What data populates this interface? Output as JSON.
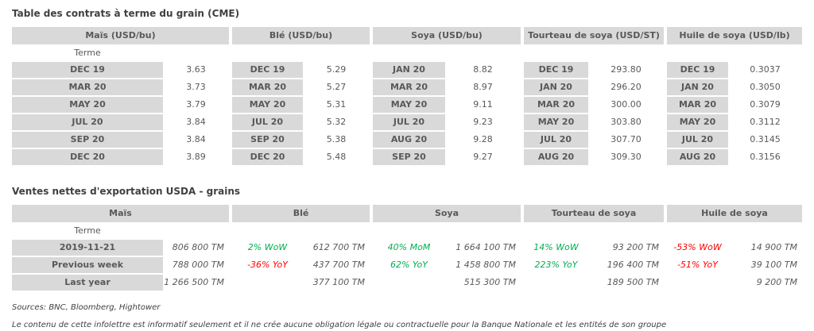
{
  "colors": {
    "header_bg": "#d9d9d9",
    "cell_text": "#595959",
    "title_text": "#404040",
    "positive": "#00b050",
    "negative": "#ff0000"
  },
  "futures_table": {
    "title": "Table des contrats à terme du grain (CME)",
    "terme_label": "Terme",
    "headers": [
      "Maïs (USD/bu)",
      "Blé (USD/bu)",
      "Soya (USD/bu)",
      "Tourteau de soya (USD/ST)",
      "Huile de soya (USD/lb)"
    ],
    "rows": [
      [
        {
          "term": "DEC 19",
          "value": "3.63"
        },
        {
          "term": "DEC 19",
          "value": "5.29"
        },
        {
          "term": "JAN 20",
          "value": "8.82"
        },
        {
          "term": "DEC 19",
          "value": "293.80"
        },
        {
          "term": "DEC 19",
          "value": "0.3037"
        }
      ],
      [
        {
          "term": "MAR 20",
          "value": "3.73"
        },
        {
          "term": "MAR 20",
          "value": "5.27"
        },
        {
          "term": "MAR 20",
          "value": "8.97"
        },
        {
          "term": "JAN 20",
          "value": "296.20"
        },
        {
          "term": "JAN 20",
          "value": "0.3050"
        }
      ],
      [
        {
          "term": "MAY 20",
          "value": "3.79"
        },
        {
          "term": "MAY 20",
          "value": "5.31"
        },
        {
          "term": "MAY 20",
          "value": "9.11"
        },
        {
          "term": "MAR 20",
          "value": "300.00"
        },
        {
          "term": "MAR 20",
          "value": "0.3079"
        }
      ],
      [
        {
          "term": "JUL 20",
          "value": "3.84"
        },
        {
          "term": "JUL 20",
          "value": "5.32"
        },
        {
          "term": "JUL 20",
          "value": "9.23"
        },
        {
          "term": "MAY 20",
          "value": "303.80"
        },
        {
          "term": "MAY 20",
          "value": "0.3112"
        }
      ],
      [
        {
          "term": "SEP 20",
          "value": "3.84"
        },
        {
          "term": "SEP 20",
          "value": "5.38"
        },
        {
          "term": "AUG 20",
          "value": "9.28"
        },
        {
          "term": "JUL 20",
          "value": "307.70"
        },
        {
          "term": "JUL 20",
          "value": "0.3145"
        }
      ],
      [
        {
          "term": "DEC 20",
          "value": "3.89"
        },
        {
          "term": "DEC 20",
          "value": "5.48"
        },
        {
          "term": "SEP 20",
          "value": "9.27"
        },
        {
          "term": "AUG 20",
          "value": "309.30"
        },
        {
          "term": "AUG 20",
          "value": "0.3156"
        }
      ]
    ]
  },
  "exports_table": {
    "title": "Ventes nettes d'exportation USDA - grains",
    "terme_label": "Terme",
    "headers": [
      "Maïs",
      "Blé",
      "Soya",
      "Tourteau de soya",
      "Huile de soya"
    ],
    "rows": [
      {
        "label": "2019-11-21",
        "mais_value": "806 800 TM",
        "sections": [
          {
            "pct": "2% WoW",
            "dir": "up",
            "value": "612 700 TM"
          },
          {
            "pct": "40% MoM",
            "dir": "up",
            "value": "1 664 100 TM"
          },
          {
            "pct": "14% WoW",
            "dir": "up",
            "value": "93 200 TM"
          },
          {
            "pct": "-53% WoW",
            "dir": "down",
            "value": "14 900 TM"
          }
        ]
      },
      {
        "label": "Previous week",
        "mais_value": "788 000 TM",
        "sections": [
          {
            "pct": "-36% YoY",
            "dir": "down",
            "value": "437 700 TM"
          },
          {
            "pct": "62% YoY",
            "dir": "up",
            "value": "1 458 800 TM"
          },
          {
            "pct": "223% YoY",
            "dir": "up",
            "value": "196 400 TM"
          },
          {
            "pct": "-51% YoY",
            "dir": "down",
            "value": "39 100 TM"
          }
        ]
      },
      {
        "label": "Last year",
        "mais_value": "1 266 500 TM",
        "sections": [
          {
            "pct": "",
            "dir": "",
            "value": "377 100 TM"
          },
          {
            "pct": "",
            "dir": "",
            "value": "515 300 TM"
          },
          {
            "pct": "",
            "dir": "",
            "value": "189 500 TM"
          },
          {
            "pct": "",
            "dir": "",
            "value": "9 200 TM"
          }
        ]
      }
    ]
  },
  "footer": {
    "sources": "Sources: BNC, Bloomberg, Hightower",
    "disclaimer": "Le contenu de cette infolettre est informatif seulement et il ne crée aucune obligation légale ou contractuelle pour la Banque Nationale et les entités de son groupe"
  }
}
